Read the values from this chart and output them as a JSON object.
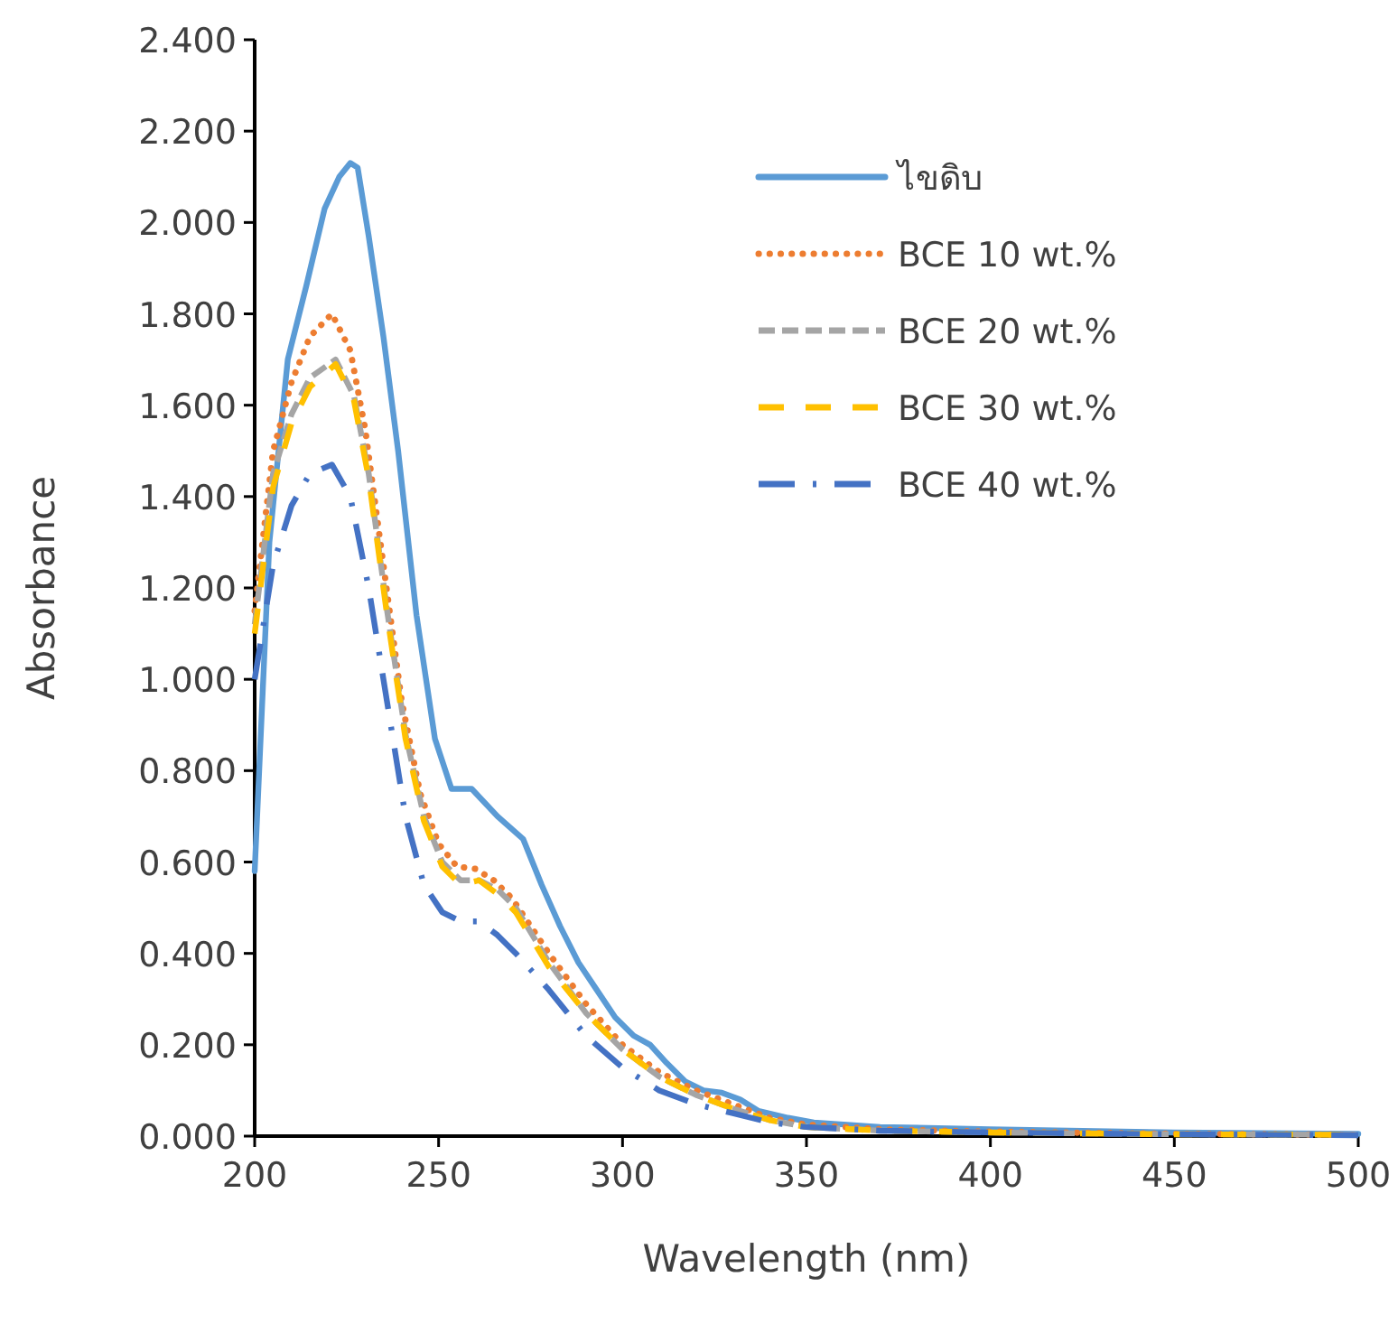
{
  "chart_data": {
    "type": "line",
    "xlabel": "Wavelength (nm)",
    "ylabel": "Absorbance",
    "legend": "top right",
    "xlim": [
      200,
      500
    ],
    "ylim": [
      0,
      2.4
    ],
    "xticks": [
      200,
      250,
      300,
      350,
      400,
      450,
      500
    ],
    "yticks": [
      {
        "value": 0,
        "label": "0.000"
      },
      {
        "value": 0.2,
        "label": "0.200"
      },
      {
        "value": 0.4,
        "label": "0.400"
      },
      {
        "value": 0.6,
        "label": "0.600"
      },
      {
        "value": 0.8,
        "label": "0.800"
      },
      {
        "value": 1.0,
        "label": "1.000"
      },
      {
        "value": 1.2,
        "label": "1.200"
      },
      {
        "value": 1.4,
        "label": "1.400"
      },
      {
        "value": 1.6,
        "label": "1.600"
      },
      {
        "value": 1.8,
        "label": "1.800"
      },
      {
        "value": 2.0,
        "label": "2.000"
      },
      {
        "value": 2.2,
        "label": "2.200"
      },
      {
        "value": 2.4,
        "label": "2.400"
      }
    ],
    "series": [
      {
        "name": "ไขดิบ",
        "color": "#5b9bd5",
        "line_style": "solid",
        "x": [
          200,
          204,
          209,
          214,
          219,
          223,
          226,
          228,
          231,
          235,
          239,
          244,
          249,
          253.5,
          259,
          266,
          273,
          278,
          283,
          288,
          293,
          298,
          303,
          307.5,
          312,
          317,
          322,
          327,
          332,
          337,
          345,
          352,
          370,
          400,
          450,
          500
        ],
        "values": [
          0.58,
          1.3,
          1.7,
          1.86,
          2.03,
          2.1,
          2.13,
          2.12,
          1.97,
          1.75,
          1.5,
          1.14,
          0.87,
          0.76,
          0.76,
          0.7,
          0.65,
          0.55,
          0.46,
          0.38,
          0.32,
          0.26,
          0.22,
          0.2,
          0.16,
          0.12,
          0.1,
          0.095,
          0.08,
          0.055,
          0.04,
          0.03,
          0.02,
          0.015,
          0.008,
          0.005
        ]
      },
      {
        "name": "BCE 10 wt.%",
        "color": "#ed7d31",
        "line_style": "dotted",
        "x": [
          200,
          205,
          210,
          215,
          221,
          226,
          230,
          235,
          240,
          245,
          250,
          255,
          260,
          265,
          270,
          280,
          290,
          300,
          310,
          320,
          330,
          340,
          350,
          370,
          400,
          450,
          500
        ],
        "values": [
          1.15,
          1.5,
          1.65,
          1.75,
          1.8,
          1.72,
          1.55,
          1.25,
          0.95,
          0.75,
          0.64,
          0.59,
          0.585,
          0.56,
          0.52,
          0.4,
          0.29,
          0.2,
          0.14,
          0.1,
          0.07,
          0.04,
          0.025,
          0.015,
          0.01,
          0.005,
          0.003
        ]
      },
      {
        "name": "BCE 20 wt.%",
        "color": "#a5a5a5",
        "line_style": "dashed",
        "x": [
          200,
          205,
          210,
          215,
          222,
          227,
          231,
          236,
          241,
          246,
          251,
          256,
          261,
          266,
          271,
          280,
          290,
          300,
          310,
          320,
          330,
          340,
          350,
          370,
          400,
          450,
          500
        ],
        "values": [
          1.12,
          1.45,
          1.58,
          1.66,
          1.7,
          1.62,
          1.45,
          1.15,
          0.88,
          0.7,
          0.6,
          0.56,
          0.56,
          0.54,
          0.5,
          0.38,
          0.27,
          0.19,
          0.13,
          0.09,
          0.06,
          0.035,
          0.02,
          0.012,
          0.008,
          0.004,
          0.003
        ]
      },
      {
        "name": "BCE 30 wt.%",
        "color": "#ffc000",
        "line_style": "dashed",
        "x": [
          200,
          205,
          210,
          215,
          222,
          227,
          231,
          236,
          241,
          246,
          251,
          256,
          261,
          266,
          271,
          280,
          290,
          300,
          310,
          320,
          330,
          340,
          350,
          370,
          400,
          450,
          500
        ],
        "values": [
          1.1,
          1.42,
          1.56,
          1.64,
          1.69,
          1.61,
          1.44,
          1.14,
          0.87,
          0.69,
          0.59,
          0.55,
          0.56,
          0.53,
          0.49,
          0.37,
          0.27,
          0.19,
          0.13,
          0.09,
          0.06,
          0.035,
          0.02,
          0.012,
          0.008,
          0.004,
          0.003
        ]
      },
      {
        "name": "BCE 40 wt.%",
        "color": "#4472c4",
        "line_style": "dashed",
        "x": [
          200,
          205,
          210,
          215,
          221,
          226,
          231,
          236,
          241,
          246,
          251,
          256,
          261,
          266,
          271,
          280,
          290,
          300,
          310,
          320,
          330,
          340,
          350,
          370,
          400,
          450,
          500
        ],
        "values": [
          1.0,
          1.25,
          1.38,
          1.45,
          1.47,
          1.4,
          1.2,
          0.95,
          0.7,
          0.55,
          0.49,
          0.47,
          0.47,
          0.44,
          0.4,
          0.32,
          0.22,
          0.15,
          0.1,
          0.07,
          0.05,
          0.03,
          0.02,
          0.012,
          0.008,
          0.004,
          0.002
        ]
      }
    ]
  }
}
